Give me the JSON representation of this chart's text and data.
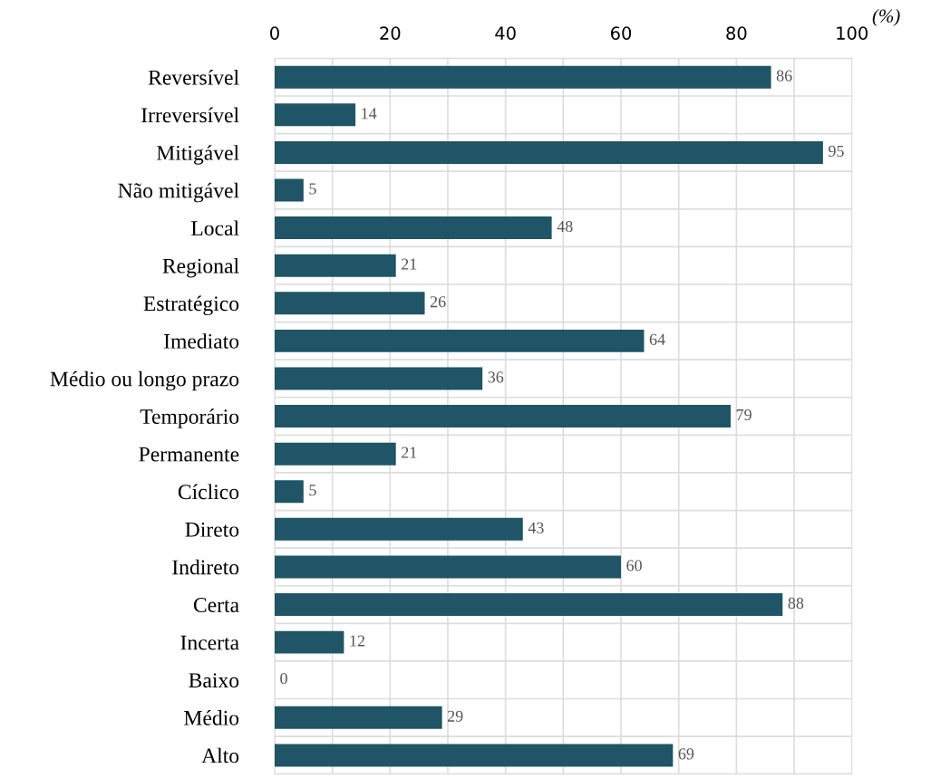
{
  "chart_data": {
    "type": "bar",
    "orientation": "horizontal",
    "xlabel": "(%)",
    "categories": [
      "Reversível",
      "Irreversível",
      "Mitigável",
      "Não mitigável",
      "Local",
      "Regional",
      "Estratégico",
      "Imediato",
      "Médio ou longo prazo",
      "Temporário",
      "Permanente",
      "Cíclico",
      "Direto",
      "Indireto",
      "Certa",
      "Incerta",
      "Baixo",
      "Médio",
      "Alto"
    ],
    "values": [
      86,
      14,
      95,
      5,
      48,
      21,
      26,
      64,
      36,
      79,
      21,
      5,
      43,
      60,
      88,
      12,
      0,
      29,
      69
    ],
    "color": "#1f5566",
    "data_labels": true,
    "xlim": [
      0,
      100
    ],
    "xticks": [
      0,
      {
        "value": 10,
        "label": null
      },
      20,
      {
        "value": 30,
        "label": null
      },
      40,
      {
        "value": 50,
        "label": null
      },
      60,
      {
        "value": 70,
        "label": null
      },
      80,
      {
        "value": 90,
        "label": null
      },
      100
    ],
    "grid": true
  }
}
